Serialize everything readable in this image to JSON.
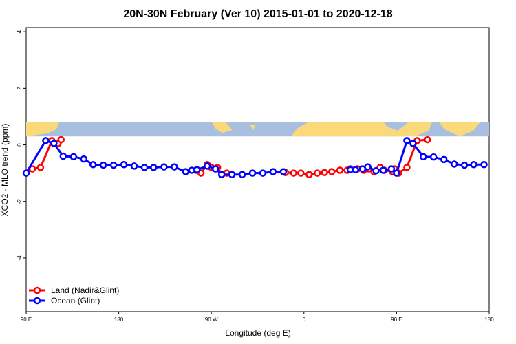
{
  "chart_data": {
    "type": "line",
    "title": "20N-30N February (Ver 10)   2015-01-01 to 2020-12-18",
    "xlabel": "Longitude (deg E)",
    "ylabel": "XCO2 - MLO trend (ppm)",
    "xlim": [
      90,
      540
    ],
    "ylim": [
      -5.9,
      4.15
    ],
    "x_ticks": [
      {
        "value": 90,
        "label": "90 E"
      },
      {
        "value": 180,
        "label": "180"
      },
      {
        "value": 270,
        "label": "90 W"
      },
      {
        "value": 360,
        "label": "0"
      },
      {
        "value": 450,
        "label": "90 E"
      },
      {
        "value": 540,
        "label": "180"
      }
    ],
    "y_ticks": [
      {
        "value": 4,
        "label": "4"
      },
      {
        "value": 2,
        "label": "2"
      },
      {
        "value": 0,
        "label": "0"
      },
      {
        "value": -2,
        "label": "-2"
      },
      {
        "value": -4,
        "label": "-4"
      }
    ],
    "map_strip": {
      "ymin": 0.3,
      "ymax": 0.8,
      "ocean_color": "#a9bfe0",
      "land_color": "#f9d97a"
    },
    "legend": {
      "position": "bottom-left"
    },
    "series": [
      {
        "name": "Land (Nadir&Glint)",
        "color": "#ff0000",
        "segments": [
          {
            "x": [
              90,
              96,
              104,
              115,
              121,
              124
            ],
            "y": [
              -1.0,
              -0.85,
              -0.8,
              0.15,
              0.05,
              0.18
            ]
          },
          {
            "x": [
              255,
              260,
              266,
              270,
              276,
              280,
              285
            ],
            "y": [
              -0.9,
              -1.0,
              -0.7,
              -0.8,
              -0.8,
              -1.05,
              -1.0
            ]
          },
          {
            "x": [
              342,
              350,
              357,
              365,
              373,
              380,
              387,
              395,
              402,
              405,
              412,
              418,
              423,
              428,
              434,
              438,
              446,
              448,
              452,
              460,
              470,
              480
            ],
            "y": [
              -0.98,
              -1.0,
              -1.0,
              -1.05,
              -1.0,
              -0.98,
              -0.95,
              -0.9,
              -0.9,
              -0.85,
              -0.85,
              -0.9,
              -0.85,
              -0.95,
              -0.8,
              -0.9,
              -0.95,
              -0.85,
              -1.0,
              -0.8,
              0.15,
              0.18
            ]
          }
        ]
      },
      {
        "name": "Ocean (Glint)",
        "color": "#0000ff",
        "segments": [
          {
            "x": [
              90,
              109,
              117,
              126,
              136,
              146,
              155,
              165,
              175,
              185,
              195,
              205,
              214,
              224,
              234,
              245,
              251,
              256,
              266,
              274,
              280,
              290,
              300,
              310,
              320,
              330,
              340
            ],
            "y": [
              -1.0,
              0.15,
              0.05,
              -0.4,
              -0.42,
              -0.5,
              -0.7,
              -0.72,
              -0.72,
              -0.7,
              -0.75,
              -0.8,
              -0.8,
              -0.78,
              -0.78,
              -0.95,
              -0.9,
              -0.88,
              -0.75,
              -0.85,
              -1.05,
              -1.05,
              -1.05,
              -1.0,
              -1.0,
              -0.95,
              -0.95
            ]
          },
          {
            "x": [
              405,
              410,
              417,
              422,
              430,
              437,
              445,
              450,
              460,
              466,
              476,
              486,
              496,
              506,
              516,
              525,
              535
            ],
            "y": [
              -0.88,
              -0.88,
              -0.85,
              -0.78,
              -0.92,
              -0.9,
              -0.85,
              -1.0,
              0.15,
              0.05,
              -0.42,
              -0.43,
              -0.52,
              -0.68,
              -0.72,
              -0.7,
              -0.7
            ]
          }
        ]
      }
    ]
  }
}
